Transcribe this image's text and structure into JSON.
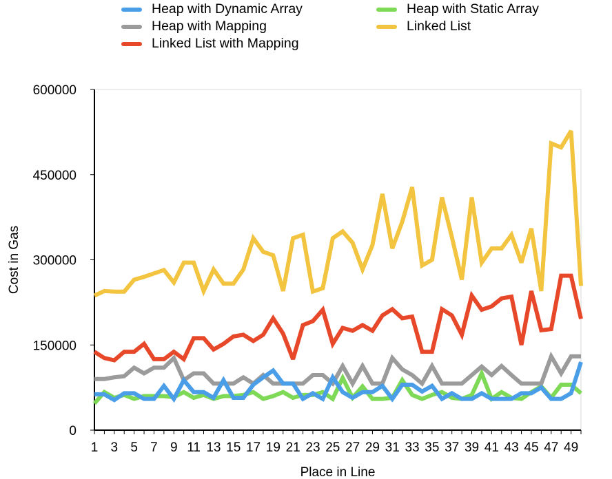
{
  "chart_data": {
    "type": "line",
    "xlabel": "Place in Line",
    "ylabel": "Cost in Gas",
    "ylim": [
      0,
      600000
    ],
    "yticks": [
      "0",
      "150000",
      "300000",
      "450000",
      "600000"
    ],
    "x": [
      1,
      2,
      3,
      4,
      5,
      6,
      7,
      8,
      9,
      10,
      11,
      12,
      13,
      14,
      15,
      16,
      17,
      18,
      19,
      20,
      21,
      22,
      23,
      24,
      25,
      26,
      27,
      28,
      29,
      30,
      31,
      32,
      33,
      34,
      35,
      36,
      37,
      38,
      39,
      40,
      41,
      42,
      43,
      44,
      45,
      46,
      47,
      48,
      49,
      50
    ],
    "xtick_labels": [
      "1",
      "3",
      "5",
      "7",
      "9",
      "11",
      "13",
      "15",
      "17",
      "19",
      "21",
      "23",
      "25",
      "27",
      "29",
      "31",
      "33",
      "35",
      "37",
      "39",
      "41",
      "43",
      "45",
      "47",
      "49"
    ],
    "grid": false,
    "legend_position": "top",
    "series": [
      {
        "name": "Heap with Dynamic Array",
        "color": "#4a9ee8",
        "values": [
          63000,
          63000,
          53000,
          65000,
          65000,
          55000,
          55000,
          78000,
          55000,
          88000,
          67000,
          67000,
          57000,
          88000,
          57000,
          57000,
          80000,
          93000,
          105000,
          82000,
          82000,
          55000,
          65000,
          55000,
          93000,
          67000,
          57000,
          67000,
          67000,
          78000,
          55000,
          80000,
          80000,
          68000,
          78000,
          55000,
          65000,
          55000,
          55000,
          65000,
          55000,
          55000,
          55000,
          65000,
          65000,
          75000,
          55000,
          55000,
          65000,
          120000
        ]
      },
      {
        "name": "Heap with Static Array",
        "color": "#7ed957",
        "values": [
          47000,
          67000,
          57000,
          62000,
          55000,
          60000,
          60000,
          60000,
          58000,
          67000,
          57000,
          62000,
          55000,
          60000,
          60000,
          62000,
          67000,
          55000,
          60000,
          67000,
          57000,
          62000,
          62000,
          67000,
          55000,
          92000,
          57000,
          77000,
          55000,
          55000,
          57000,
          88000,
          62000,
          55000,
          62000,
          67000,
          57000,
          55000,
          62000,
          100000,
          55000,
          67000,
          57000,
          55000,
          67000,
          77000,
          57000,
          80000,
          80000,
          65000
        ]
      },
      {
        "name": "Heap with Mapping",
        "color": "#9b9b9b",
        "values": [
          90000,
          90000,
          93000,
          95000,
          110000,
          100000,
          110000,
          110000,
          127000,
          88000,
          100000,
          100000,
          82000,
          82000,
          82000,
          93000,
          82000,
          97000,
          82000,
          82000,
          82000,
          82000,
          97000,
          97000,
          82000,
          113000,
          82000,
          113000,
          82000,
          82000,
          127000,
          107000,
          97000,
          82000,
          113000,
          82000,
          82000,
          82000,
          97000,
          112000,
          97000,
          113000,
          97000,
          82000,
          82000,
          82000,
          130000,
          100000,
          130000,
          130000
        ]
      },
      {
        "name": "Linked List",
        "color": "#f2c440",
        "values": [
          237000,
          245000,
          244000,
          244000,
          265000,
          270000,
          276000,
          282000,
          260000,
          295000,
          295000,
          245000,
          283000,
          258000,
          258000,
          283000,
          338000,
          314000,
          308000,
          245000,
          338000,
          344000,
          244000,
          250000,
          338000,
          350000,
          330000,
          283000,
          326000,
          416000,
          320000,
          367000,
          428000,
          290000,
          300000,
          410000,
          340000,
          265000,
          410000,
          295000,
          320000,
          320000,
          344000,
          295000,
          355000,
          245000,
          505000,
          498000,
          527000,
          254000
        ]
      },
      {
        "name": "Linked List with Mapping",
        "color": "#e8482a",
        "values": [
          138000,
          127000,
          123000,
          138000,
          138000,
          152000,
          125000,
          125000,
          138000,
          125000,
          162000,
          162000,
          142000,
          152000,
          165000,
          168000,
          157000,
          168000,
          197000,
          170000,
          125000,
          185000,
          192000,
          212000,
          152000,
          180000,
          175000,
          185000,
          175000,
          202000,
          213000,
          197000,
          200000,
          138000,
          138000,
          213000,
          202000,
          168000,
          237000,
          212000,
          218000,
          232000,
          235000,
          150000,
          245000,
          176000,
          178000,
          272000,
          272000,
          196000
        ]
      }
    ]
  }
}
